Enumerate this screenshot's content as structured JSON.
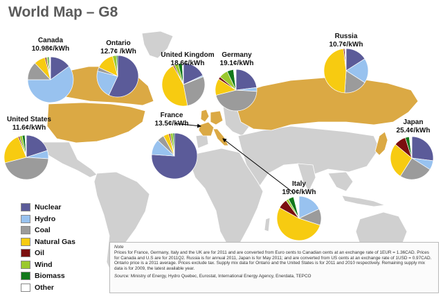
{
  "title": "World Map – G8",
  "colors": {
    "ocean": "#ffffff",
    "land": "#d0d0d0",
    "g8": "#dba944",
    "border": "#ffffff",
    "arrow": "#000000"
  },
  "legend": [
    {
      "label": "Nuclear",
      "color": "#5b5b99"
    },
    {
      "label": "Hydro",
      "color": "#98c2ef"
    },
    {
      "label": "Coal",
      "color": "#9b9b9b"
    },
    {
      "label": "Natural Gas",
      "color": "#f7cb11"
    },
    {
      "label": "Oil",
      "color": "#7b0f0f"
    },
    {
      "label": "Wind",
      "color": "#9ac92d"
    },
    {
      "label": "Biomass",
      "color": "#12781b"
    },
    {
      "label": "Other",
      "color": "#ffffff"
    }
  ],
  "note": {
    "heading": "Note",
    "text": "Prices for France, Germany, Italy and the UK are for 2011 and are converted from Euro cents to Canadian cents at an exchange rate of 1EUR = 1.36CAD.  Prices for Canada and U.S are for 2011Q2.  Russia is for annual 2011, Japan is for May 2011; and are converted from US cents at an exchange rate of 1USD = 0.97CAD. Ontario price is a 2011 average.  Prices exclude tax.  Supply mix data for Ontario and the United States is for 2011 and  2010 respectively.  Remaining supply mix data is for 2009, the latest available year.",
    "source_label": "Source:",
    "source_text": " Ministry of Energy, Hydro Quebec, Eurostat, International Energy Agency, Enerdata, TEPCO"
  },
  "chart_data": {
    "type": "pie",
    "unit": "¢/kWh",
    "series_order": [
      "Nuclear",
      "Hydro",
      "Coal",
      "Natural Gas",
      "Oil",
      "Wind",
      "Biomass",
      "Other"
    ],
    "regions": [
      {
        "name": "Canada",
        "price": "10.98¢/kWh",
        "mix": [
          15,
          60,
          13,
          8,
          1,
          1,
          1,
          1
        ]
      },
      {
        "name": "Ontario",
        "price": "12.7¢ /kWh",
        "mix": [
          57,
          22,
          3,
          14,
          0,
          3,
          1,
          0
        ]
      },
      {
        "name": "United Kingdom",
        "price": "18.6¢/kWh",
        "mix": [
          18,
          1,
          28,
          45,
          1,
          3,
          3,
          1
        ]
      },
      {
        "name": "Germany",
        "price": "19.1¢/kWh",
        "mix": [
          23,
          3,
          45,
          13,
          2,
          7,
          5,
          2
        ]
      },
      {
        "name": "Russia",
        "price": "10.7¢/kWh",
        "mix": [
          16,
          18,
          17,
          47,
          1,
          0,
          0,
          1
        ]
      },
      {
        "name": "United States",
        "price": "11.6¢/kWh",
        "mix": [
          20,
          6,
          45,
          23,
          1,
          2,
          2,
          1
        ]
      },
      {
        "name": "France",
        "price": "13.5¢/kWh",
        "mix": [
          76,
          11,
          5,
          4,
          1,
          2,
          1,
          0
        ]
      },
      {
        "name": "Japan",
        "price": "25.4¢/kWh",
        "mix": [
          27,
          7,
          25,
          27,
          9,
          0,
          3,
          2
        ]
      },
      {
        "name": "Italy",
        "price": "19.0¢/kWh",
        "mix": [
          0,
          18,
          12,
          53,
          7,
          2,
          4,
          4
        ]
      }
    ]
  }
}
